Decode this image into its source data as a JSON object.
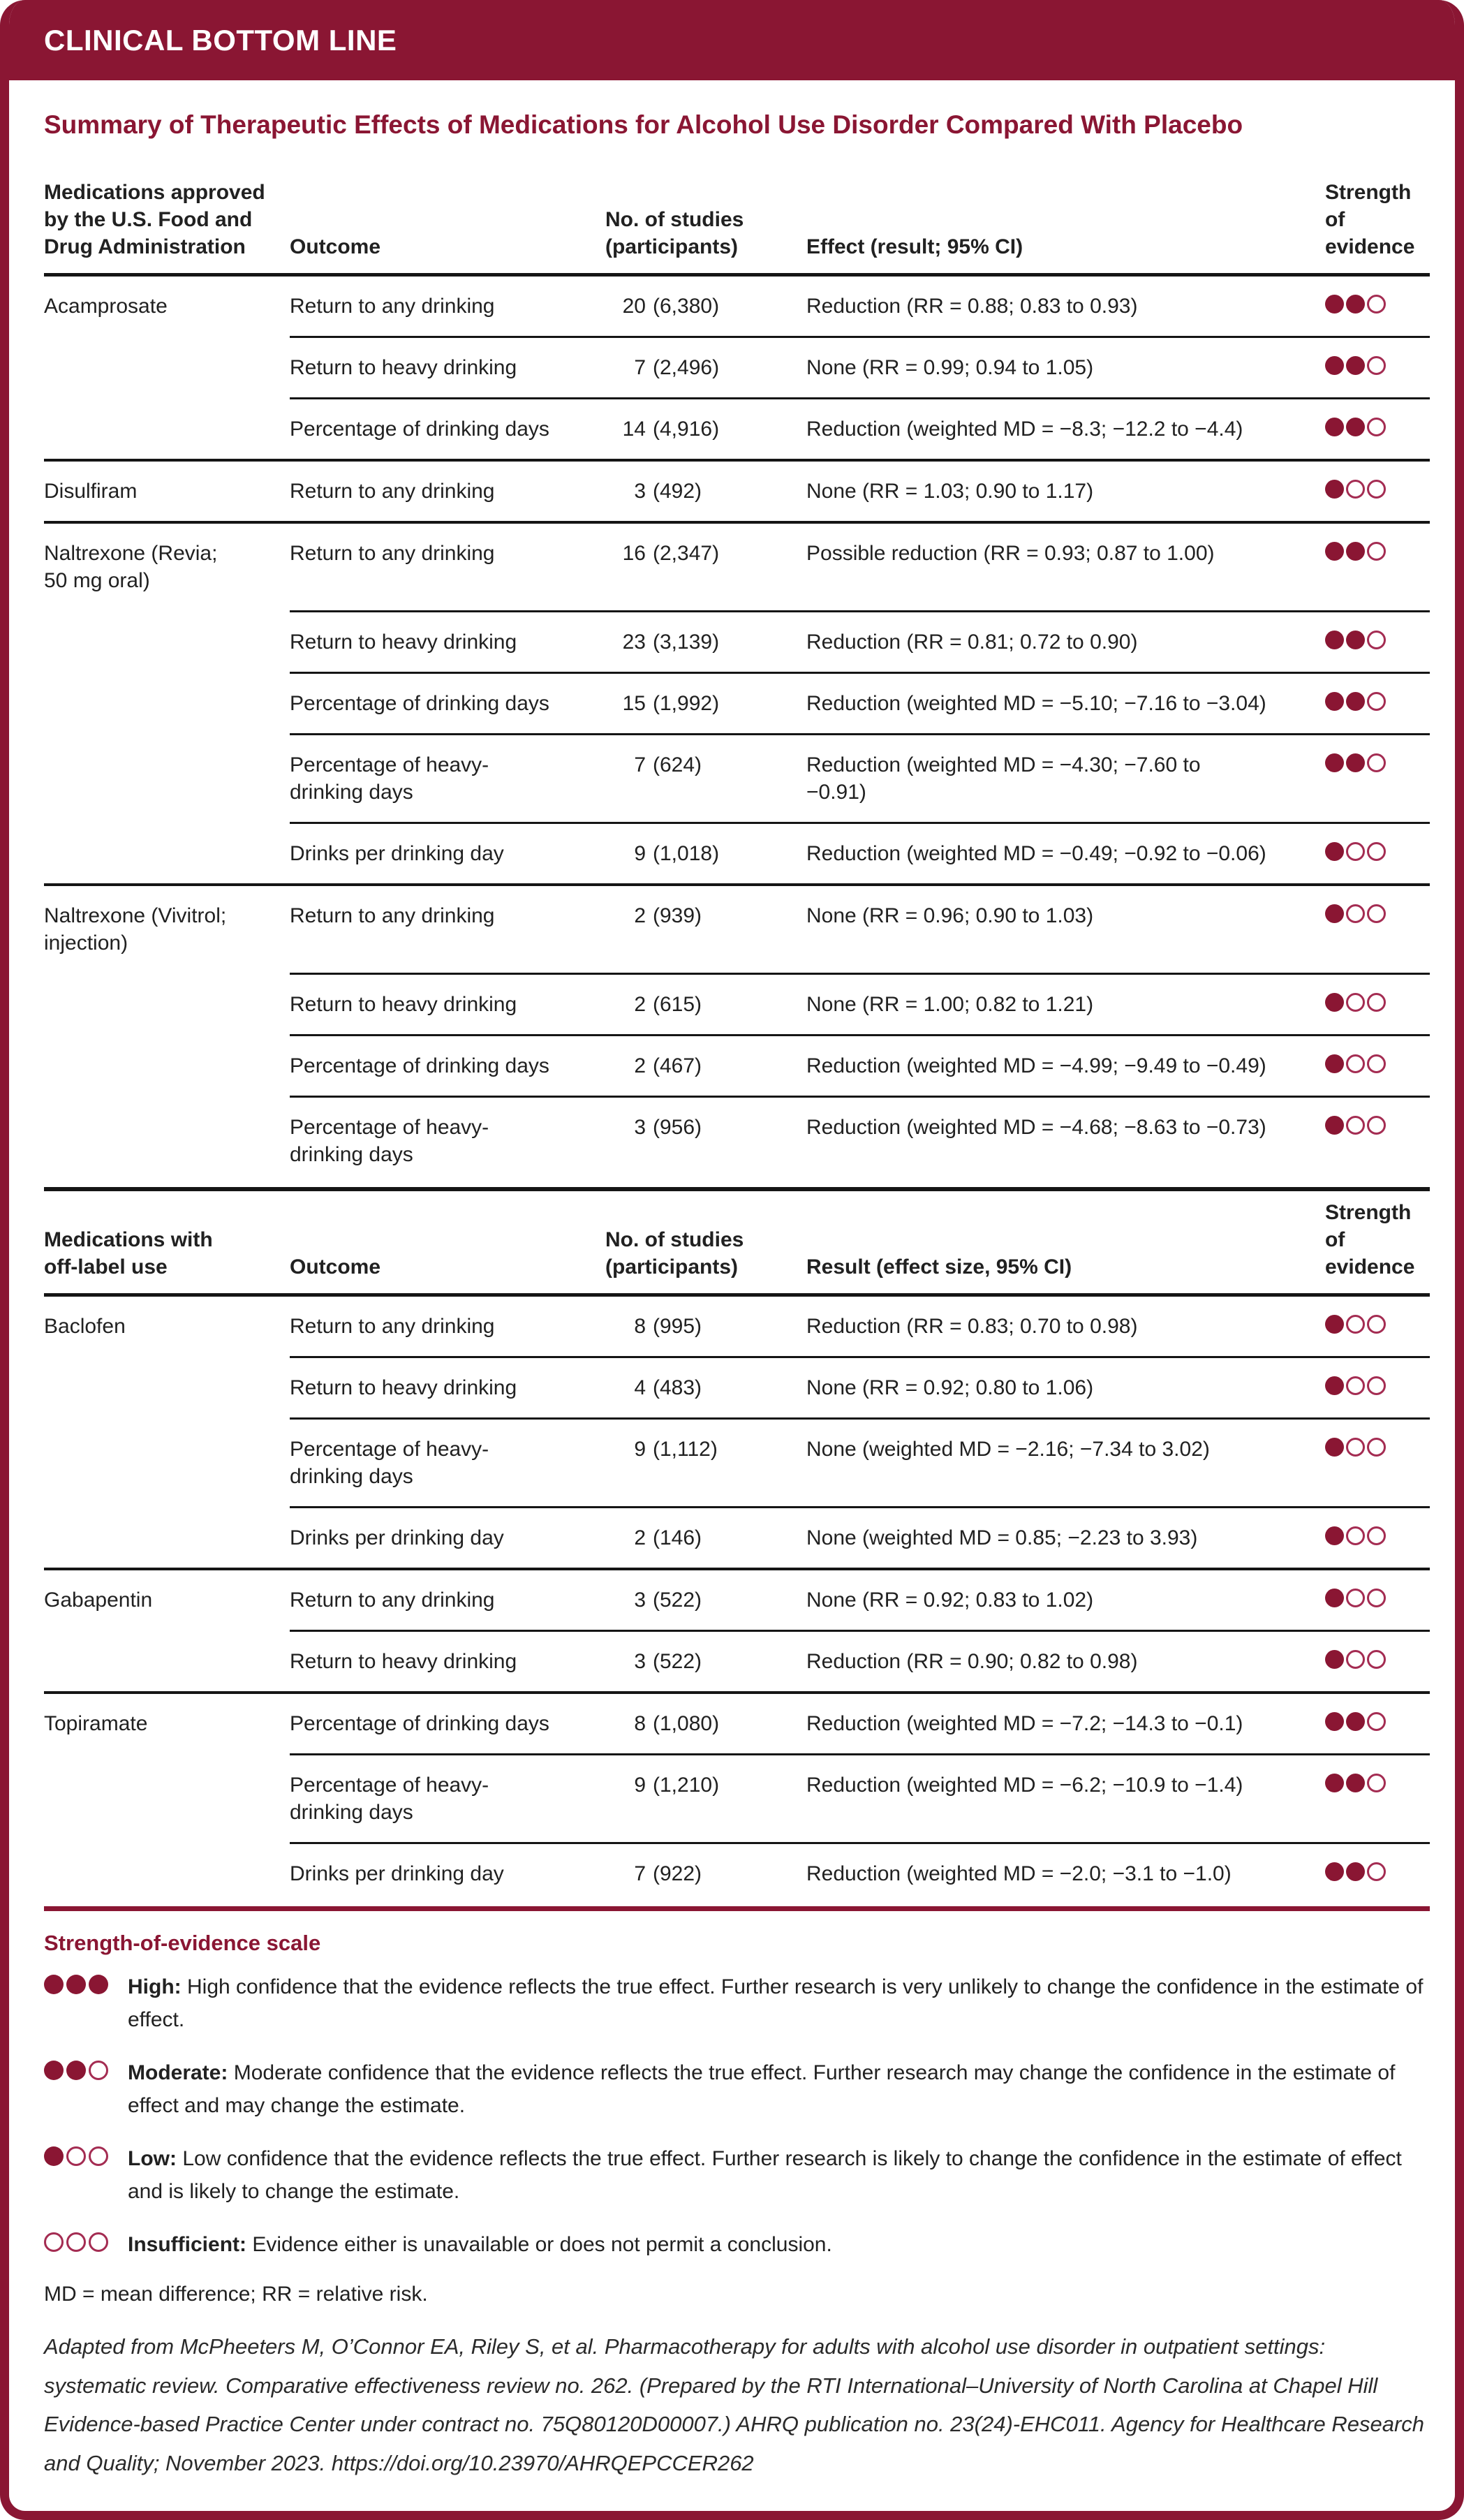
{
  "banner": {
    "title": "CLINICAL BOTTOM LINE"
  },
  "page_title": "Summary of Therapeutic Effects of Medications for Alcohol Use Disorder Compared With Placebo",
  "colors": {
    "maroon": "#8A1633",
    "dot_fill": "#8A1633",
    "dot_empty_border": "#A42C52"
  },
  "table": {
    "sections": [
      {
        "headers": {
          "medication": "Medications approved\nby the U.S. Food and\nDrug Administration",
          "outcome": "Outcome",
          "studies": "No. of studies\n(participants)",
          "effect": "Effect (result; 95% CI)",
          "evidence": "Strength of\nevidence"
        },
        "groups": [
          {
            "medication": "Acamprosate",
            "rows": [
              {
                "outcome": "Return to any drinking",
                "studies": "20",
                "participants": "(6,380)",
                "effect": "Reduction (RR = 0.88; 0.83 to 0.93)",
                "evidence_filled": 2
              },
              {
                "outcome": "Return to heavy drinking",
                "studies": "7",
                "participants": "(2,496)",
                "effect": "None (RR = 0.99; 0.94 to 1.05)",
                "evidence_filled": 2
              },
              {
                "outcome": "Percentage of drinking days",
                "studies": "14",
                "participants": "(4,916)",
                "effect": "Reduction (weighted MD = −8.3; −12.2 to −4.4)",
                "evidence_filled": 2
              }
            ]
          },
          {
            "medication": "Disulfiram",
            "rows": [
              {
                "outcome": "Return to any drinking",
                "studies": "3",
                "participants": "(492)",
                "effect": "None (RR = 1.03; 0.90 to 1.17)",
                "evidence_filled": 1
              }
            ]
          },
          {
            "medication": "Naltrexone (Revia;\n50 mg oral)",
            "rows": [
              {
                "outcome": "Return to any drinking",
                "studies": "16",
                "participants": "(2,347)",
                "effect": "Possible reduction (RR = 0.93; 0.87 to 1.00)",
                "evidence_filled": 2
              },
              {
                "outcome": "Return to heavy drinking",
                "studies": "23",
                "participants": "(3,139)",
                "effect": "Reduction (RR = 0.81; 0.72 to 0.90)",
                "evidence_filled": 2
              },
              {
                "outcome": "Percentage of drinking days",
                "studies": "15",
                "participants": "(1,992)",
                "effect": "Reduction (weighted MD = −5.10; −7.16 to −3.04)",
                "evidence_filled": 2
              },
              {
                "outcome": "Percentage of heavy-\ndrinking days",
                "studies": "7",
                "participants": "(624)",
                "effect": "Reduction (weighted MD = −4.30; −7.60 to\n−0.91)",
                "evidence_filled": 2
              },
              {
                "outcome": "Drinks per drinking day",
                "studies": "9",
                "participants": "(1,018)",
                "effect": "Reduction (weighted MD = −0.49; −0.92 to −0.06)",
                "evidence_filled": 1
              }
            ]
          },
          {
            "medication": "Naltrexone (Vivitrol;\ninjection)",
            "rows": [
              {
                "outcome": "Return to any drinking",
                "studies": "2",
                "participants": "(939)",
                "effect": "None (RR = 0.96; 0.90 to 1.03)",
                "evidence_filled": 1
              },
              {
                "outcome": "Return to heavy drinking",
                "studies": "2",
                "participants": "(615)",
                "effect": "None (RR = 1.00; 0.82 to 1.21)",
                "evidence_filled": 1
              },
              {
                "outcome": "Percentage of drinking days",
                "studies": "2",
                "participants": "(467)",
                "effect": "Reduction (weighted MD = −4.99; −9.49 to −0.49)",
                "evidence_filled": 1
              },
              {
                "outcome": "Percentage of heavy-\ndrinking days",
                "studies": "3",
                "participants": "(956)",
                "effect": "Reduction (weighted MD = −4.68; −8.63 to −0.73)",
                "evidence_filled": 1
              }
            ]
          }
        ]
      },
      {
        "headers": {
          "medication": "Medications with\noff-label use",
          "outcome": "Outcome",
          "studies": "No. of studies\n(participants)",
          "effect": "Result (effect size, 95% CI)",
          "evidence": "Strength of\nevidence"
        },
        "groups": [
          {
            "medication": "Baclofen",
            "rows": [
              {
                "outcome": "Return to any drinking",
                "studies": "8",
                "participants": "(995)",
                "effect": "Reduction (RR = 0.83; 0.70 to 0.98)",
                "evidence_filled": 1
              },
              {
                "outcome": "Return to heavy drinking",
                "studies": "4",
                "participants": "(483)",
                "effect": "None (RR = 0.92; 0.80 to 1.06)",
                "evidence_filled": 1
              },
              {
                "outcome": "Percentage of heavy-\ndrinking days",
                "studies": "9",
                "participants": "(1,112)",
                "effect": "None (weighted MD = −2.16; −7.34 to 3.02)",
                "evidence_filled": 1
              },
              {
                "outcome": "Drinks per drinking day",
                "studies": "2",
                "participants": "(146)",
                "effect": "None (weighted MD = 0.85; −2.23 to 3.93)",
                "evidence_filled": 1
              }
            ]
          },
          {
            "medication": "Gabapentin",
            "rows": [
              {
                "outcome": "Return to any drinking",
                "studies": "3",
                "participants": "(522)",
                "effect": "None (RR = 0.92; 0.83 to 1.02)",
                "evidence_filled": 1
              },
              {
                "outcome": "Return to heavy drinking",
                "studies": "3",
                "participants": "(522)",
                "effect": "Reduction (RR = 0.90; 0.82 to 0.98)",
                "evidence_filled": 1
              }
            ]
          },
          {
            "medication": "Topiramate",
            "rows": [
              {
                "outcome": "Percentage of drinking days",
                "studies": "8",
                "participants": "(1,080)",
                "effect": "Reduction (weighted MD = −7.2; −14.3 to −0.1)",
                "evidence_filled": 2
              },
              {
                "outcome": "Percentage of heavy-\ndrinking days",
                "studies": "9",
                "participants": "(1,210)",
                "effect": "Reduction (weighted MD = −6.2; −10.9 to −1.4)",
                "evidence_filled": 2
              },
              {
                "outcome": "Drinks per drinking day",
                "studies": "7",
                "participants": "(922)",
                "effect": "Reduction (weighted MD = −2.0; −3.1 to −1.0)",
                "evidence_filled": 2
              }
            ]
          }
        ]
      }
    ]
  },
  "legend": {
    "heading": "Strength-of-evidence scale",
    "items": [
      {
        "filled": 3,
        "label": "High:",
        "text": "High confidence that the evidence reflects the true effect. Further research is very unlikely to change the confidence in the estimate of effect."
      },
      {
        "filled": 2,
        "label": "Moderate:",
        "text": "Moderate confidence that the evidence reflects the true effect. Further research may change the confidence in the estimate of effect and may change the estimate."
      },
      {
        "filled": 1,
        "label": "Low:",
        "text": "Low confidence that the evidence reflects the true effect. Further research is likely to change the confidence in the estimate of effect and is likely to change the estimate."
      },
      {
        "filled": 0,
        "label": "Insufficient:",
        "text": "Evidence either is unavailable or does not permit a conclusion."
      }
    ]
  },
  "footnotes": {
    "abbreviations": "MD = mean difference; RR = relative risk.",
    "citation": "Adapted from McPheeters M, O’Connor EA, Riley S, et al. Pharmacotherapy for adults with alcohol use disorder in outpatient settings: systematic review. Comparative effectiveness review no. 262. (Prepared by the RTI International–University of North Carolina at Chapel Hill Evidence-based Practice Center under contract no. 75Q80120D00007.) AHRQ publication no. 23(24)-EHC011. Agency for Healthcare Research and Quality; November 2023. https://doi.org/10.23970/AHRQEPCCER262"
  }
}
